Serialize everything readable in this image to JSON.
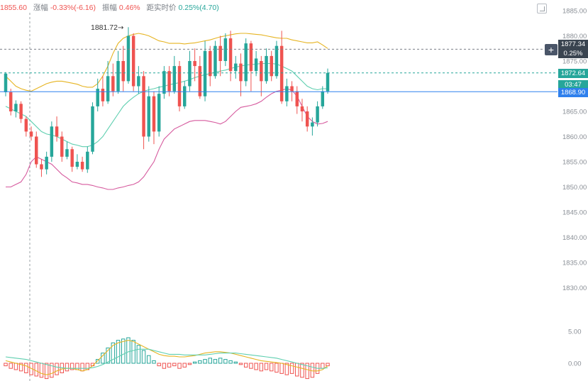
{
  "info_bar": {
    "price": "1855.60",
    "change_label": "涨幅",
    "change_value": "-0.33%(-6.16)",
    "amplitude_label": "振幅",
    "amplitude_value": "0.46%",
    "distance_label": "距实时价",
    "distance_value": "0.25%(4.70)"
  },
  "price_tags": {
    "crosshair_price": "1877.34",
    "crosshair_pct": "0.25%",
    "last_price": "1872.64",
    "countdown": "03:47",
    "line_price": "1868.90"
  },
  "annotation": {
    "high_label": "1881.72"
  },
  "colors": {
    "up": "#26a69a",
    "down": "#ef5350",
    "boll_upper": "#e6b422",
    "boll_mid": "#5fcfb0",
    "boll_lower": "#d65a9e",
    "horizontal_line": "#2f80ed",
    "macd_dif": "#e6b422",
    "macd_dea": "#5fcfb0"
  },
  "chart_data": {
    "type": "candlestick",
    "price_axis": {
      "ticks": [
        "1885.00",
        "1880.00",
        "1875.00",
        "1870.00",
        "1865.00",
        "1860.00",
        "1855.00",
        "1850.00",
        "1845.00",
        "1840.00",
        "1835.00",
        "1830.00"
      ],
      "range": [
        1826,
        1886
      ]
    },
    "macd_axis": {
      "ticks": [
        "5.00",
        "0.00"
      ],
      "range": [
        -3.5,
        7
      ]
    },
    "horizontal_lines": {
      "crosshair": 1877.34,
      "last_price": 1872.64,
      "line": 1868.9
    },
    "candles": [
      [
        1868.8,
        1872.5,
        1868.0,
        1872.8
      ],
      [
        1868.8,
        1865.0,
        1864.2,
        1869.5
      ],
      [
        1865.0,
        1866.5,
        1863.8,
        1867.2
      ],
      [
        1866.5,
        1863.5,
        1862.7,
        1867.0
      ],
      [
        1863.5,
        1861.0,
        1860.0,
        1864.0
      ],
      [
        1861.0,
        1860.0,
        1859.2,
        1862.0
      ],
      [
        1860.0,
        1854.5,
        1853.8,
        1861.0
      ],
      [
        1854.5,
        1853.5,
        1852.0,
        1855.5
      ],
      [
        1853.5,
        1856.0,
        1852.5,
        1857.0
      ],
      [
        1856.0,
        1862.0,
        1855.0,
        1863.0
      ],
      [
        1862.0,
        1860.0,
        1859.0,
        1864.0
      ],
      [
        1860.0,
        1856.0,
        1855.0,
        1861.0
      ],
      [
        1856.0,
        1857.5,
        1855.5,
        1859.0
      ],
      [
        1857.5,
        1854.0,
        1853.0,
        1858.0
      ],
      [
        1854.0,
        1855.0,
        1853.5,
        1856.5
      ],
      [
        1855.0,
        1853.5,
        1853.0,
        1856.0
      ],
      [
        1853.5,
        1857.0,
        1852.8,
        1858.0
      ],
      [
        1857.0,
        1866.0,
        1856.5,
        1866.8
      ],
      [
        1866.0,
        1869.5,
        1865.0,
        1871.5
      ],
      [
        1869.5,
        1867.0,
        1866.0,
        1872.0
      ],
      [
        1867.0,
        1872.0,
        1866.5,
        1875.0
      ],
      [
        1872.0,
        1869.0,
        1868.0,
        1874.5
      ],
      [
        1869.0,
        1875.0,
        1868.5,
        1877.0
      ],
      [
        1875.0,
        1871.0,
        1869.0,
        1878.0
      ],
      [
        1871.0,
        1880.0,
        1870.5,
        1881.72
      ],
      [
        1880.0,
        1870.0,
        1869.0,
        1880.5
      ],
      [
        1870.0,
        1872.0,
        1868.5,
        1874.0
      ],
      [
        1872.0,
        1860.0,
        1857.5,
        1873.0
      ],
      [
        1860.0,
        1868.0,
        1859.0,
        1870.0
      ],
      [
        1868.0,
        1861.0,
        1858.5,
        1869.0
      ],
      [
        1861.0,
        1868.5,
        1860.0,
        1870.0
      ],
      [
        1868.5,
        1873.0,
        1867.5,
        1874.0
      ],
      [
        1873.0,
        1869.0,
        1868.0,
        1874.0
      ],
      [
        1869.0,
        1874.0,
        1868.5,
        1876.0
      ],
      [
        1874.0,
        1866.0,
        1865.0,
        1875.0
      ],
      [
        1866.0,
        1870.0,
        1865.5,
        1871.0
      ],
      [
        1870.0,
        1875.0,
        1869.0,
        1877.0
      ],
      [
        1875.0,
        1874.0,
        1871.0,
        1877.5
      ],
      [
        1874.0,
        1868.0,
        1867.5,
        1876.0
      ],
      [
        1868.0,
        1877.0,
        1867.0,
        1879.0
      ],
      [
        1877.0,
        1872.0,
        1870.0,
        1878.0
      ],
      [
        1872.0,
        1878.0,
        1871.5,
        1879.0
      ],
      [
        1878.0,
        1875.0,
        1872.0,
        1880.0
      ],
      [
        1875.0,
        1879.5,
        1874.0,
        1880.5
      ],
      [
        1879.5,
        1873.0,
        1871.0,
        1881.0
      ],
      [
        1873.0,
        1874.5,
        1871.5,
        1876.0
      ],
      [
        1874.5,
        1871.0,
        1868.0,
        1876.5
      ],
      [
        1871.0,
        1878.5,
        1870.0,
        1879.5
      ],
      [
        1878.5,
        1873.0,
        1869.0,
        1879.0
      ],
      [
        1873.0,
        1875.5,
        1872.0,
        1877.0
      ],
      [
        1875.0,
        1871.0,
        1868.0,
        1876.0
      ],
      [
        1871.0,
        1876.0,
        1870.5,
        1877.5
      ],
      [
        1876.0,
        1872.0,
        1871.0,
        1877.0
      ],
      [
        1872.0,
        1878.0,
        1871.5,
        1879.0
      ],
      [
        1878.0,
        1867.0,
        1866.5,
        1881.0
      ],
      [
        1867.0,
        1870.0,
        1866.0,
        1871.5
      ],
      [
        1870.0,
        1869.0,
        1867.0,
        1871.0
      ],
      [
        1869.0,
        1866.0,
        1864.5,
        1870.0
      ],
      [
        1866.0,
        1865.0,
        1863.0,
        1867.5
      ],
      [
        1865.0,
        1862.0,
        1861.0,
        1866.0
      ],
      [
        1862.0,
        1862.8,
        1860.2,
        1863.8
      ],
      [
        1862.8,
        1866.0,
        1862.0,
        1867.0
      ],
      [
        1866.0,
        1869.0,
        1865.5,
        1870.0
      ],
      [
        1869.0,
        1872.64,
        1868.5,
        1873.5
      ]
    ],
    "bollinger": {
      "upper": [
        1872.0,
        1871.0,
        1870.0,
        1869.5,
        1869.2,
        1869.0,
        1869.5,
        1870.0,
        1870.5,
        1870.8,
        1871.0,
        1871.0,
        1870.8,
        1870.6,
        1870.4,
        1870.0,
        1869.8,
        1869.8,
        1870.5,
        1872.0,
        1874.0,
        1876.5,
        1878.5,
        1879.5,
        1880.0,
        1880.3,
        1880.5,
        1880.3,
        1880.0,
        1879.5,
        1879.0,
        1878.8,
        1878.5,
        1878.5,
        1878.5,
        1878.4,
        1878.5,
        1878.6,
        1878.8,
        1879.0,
        1879.2,
        1879.5,
        1879.8,
        1880.0,
        1880.2,
        1880.4,
        1880.5,
        1880.5,
        1880.4,
        1880.3,
        1880.2,
        1880.0,
        1879.8,
        1879.6,
        1879.5,
        1879.5,
        1879.2,
        1879.0,
        1878.8,
        1878.6,
        1878.6,
        1878.8,
        1878.2,
        1877.5
      ],
      "middle": [
        1866.0,
        1865.5,
        1865.0,
        1864.5,
        1864.0,
        1863.0,
        1862.0,
        1861.0,
        1860.5,
        1860.3,
        1860.0,
        1859.5,
        1859.0,
        1858.5,
        1858.3,
        1858.0,
        1858.0,
        1858.3,
        1859.0,
        1860.0,
        1861.5,
        1863.0,
        1864.5,
        1866.0,
        1867.0,
        1867.8,
        1868.5,
        1869.0,
        1869.3,
        1869.5,
        1869.8,
        1870.0,
        1870.3,
        1870.5,
        1870.7,
        1871.0,
        1871.3,
        1871.7,
        1872.0,
        1872.3,
        1872.5,
        1872.8,
        1873.0,
        1873.2,
        1873.5,
        1873.8,
        1874.0,
        1874.2,
        1874.3,
        1874.4,
        1874.5,
        1874.5,
        1874.5,
        1874.4,
        1874.0,
        1873.5,
        1873.0,
        1872.0,
        1871.0,
        1870.0,
        1869.5,
        1869.3,
        1869.5,
        1869.5
      ],
      "lower": [
        1850.0,
        1850.0,
        1850.5,
        1851.0,
        1852.5,
        1855.0,
        1856.0,
        1855.5,
        1855.0,
        1854.5,
        1853.5,
        1852.5,
        1851.8,
        1851.0,
        1850.8,
        1850.5,
        1850.5,
        1850.3,
        1850.0,
        1849.8,
        1849.5,
        1849.5,
        1849.8,
        1850.0,
        1850.3,
        1850.5,
        1851.0,
        1852.0,
        1853.5,
        1855.0,
        1857.5,
        1859.5,
        1860.5,
        1861.5,
        1862.0,
        1862.5,
        1863.0,
        1863.2,
        1863.2,
        1863.2,
        1863.0,
        1862.8,
        1862.5,
        1863.0,
        1864.0,
        1865.0,
        1865.8,
        1866.0,
        1866.2,
        1866.5,
        1867.0,
        1867.8,
        1868.5,
        1869.0,
        1869.2,
        1869.5,
        1869.2,
        1868.0,
        1866.0,
        1864.0,
        1863.0,
        1862.5,
        1862.6,
        1863.0
      ]
    },
    "macd": {
      "histogram": [
        -0.4,
        -0.8,
        -1.0,
        -1.2,
        -1.5,
        -1.8,
        -2.0,
        -2.2,
        -2.4,
        -2.2,
        -1.8,
        -1.5,
        -1.2,
        -1.0,
        -1.0,
        -1.2,
        -1.0,
        -0.4,
        0.6,
        1.6,
        2.4,
        3.2,
        3.6,
        3.8,
        4.0,
        3.6,
        2.8,
        2.0,
        1.2,
        0.4,
        -0.4,
        -0.8,
        -0.6,
        -0.4,
        -0.8,
        -0.6,
        -0.2,
        0.2,
        0.4,
        0.6,
        0.8,
        0.6,
        0.8,
        0.6,
        0.4,
        0.2,
        -0.2,
        -0.6,
        -0.8,
        -1.0,
        -1.2,
        -1.0,
        -1.2,
        -1.4,
        -1.6,
        -1.8,
        -1.6,
        -2.0,
        -2.2,
        -2.4,
        -2.2,
        -1.6,
        -0.8,
        -0.4
      ],
      "dif": [
        0.4,
        0.2,
        0.0,
        -0.2,
        -0.4,
        -0.8,
        -1.2,
        -1.6,
        -1.8,
        -1.6,
        -1.2,
        -0.9,
        -0.8,
        -0.8,
        -1.0,
        -1.2,
        -1.0,
        -0.4,
        0.4,
        1.2,
        2.0,
        2.8,
        3.2,
        3.4,
        3.6,
        3.4,
        3.0,
        2.6,
        2.2,
        1.8,
        1.4,
        1.2,
        1.1,
        1.1,
        1.0,
        1.0,
        1.1,
        1.2,
        1.4,
        1.6,
        1.7,
        1.8,
        1.8,
        1.7,
        1.6,
        1.4,
        1.2,
        1.0,
        0.8,
        0.6,
        0.4,
        0.3,
        0.2,
        0.1,
        0.0,
        -0.2,
        -0.4,
        -0.6,
        -0.8,
        -1.0,
        -1.2,
        -1.2,
        -1.0,
        -0.4
      ],
      "dea": [
        1.0,
        0.9,
        0.8,
        0.7,
        0.6,
        0.4,
        0.2,
        0.0,
        -0.2,
        -0.4,
        -0.6,
        -0.7,
        -0.8,
        -0.8,
        -0.8,
        -0.8,
        -0.8,
        -0.7,
        -0.5,
        -0.2,
        0.2,
        0.6,
        1.0,
        1.4,
        1.8,
        2.0,
        2.2,
        2.2,
        2.2,
        2.0,
        1.8,
        1.6,
        1.4,
        1.4,
        1.4,
        1.3,
        1.3,
        1.3,
        1.3,
        1.3,
        1.4,
        1.5,
        1.6,
        1.6,
        1.6,
        1.6,
        1.5,
        1.4,
        1.3,
        1.2,
        1.1,
        1.0,
        0.9,
        0.8,
        0.6,
        0.4,
        0.2,
        0.0,
        -0.2,
        -0.4,
        -0.6,
        -0.8,
        -0.8,
        -0.7
      ]
    }
  }
}
